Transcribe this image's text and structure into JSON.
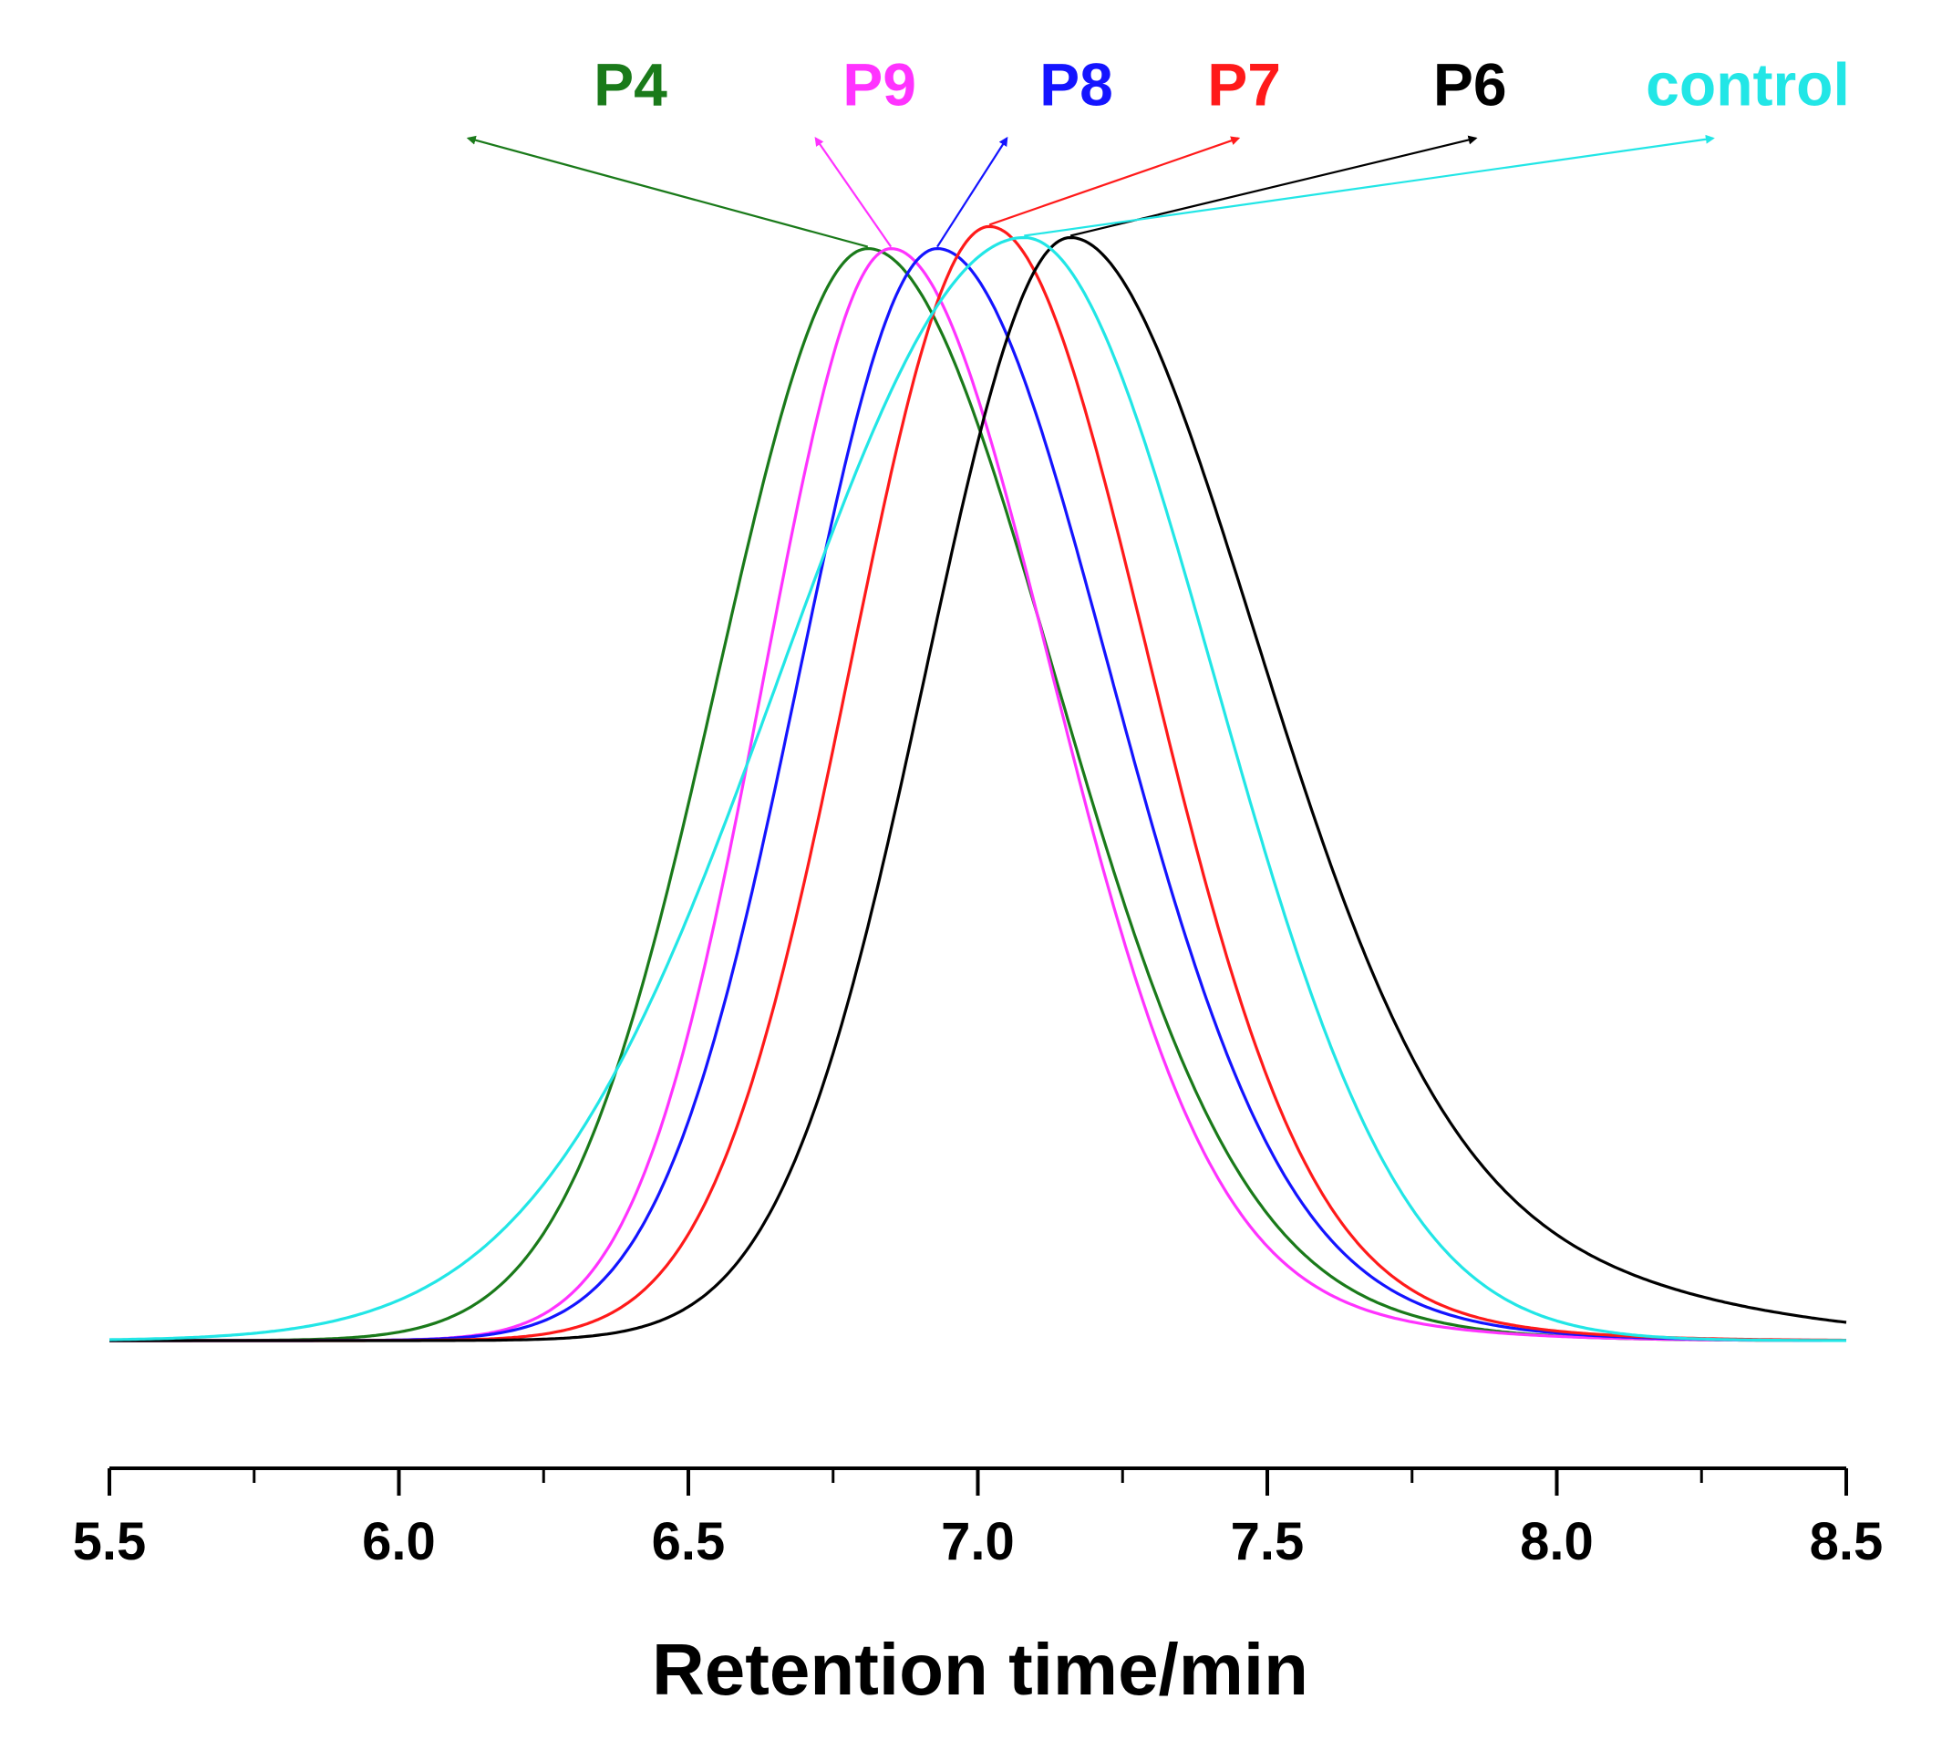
{
  "chart_data": {
    "type": "line",
    "xlabel": "Retention time/min",
    "ylabel": "",
    "xlim": [
      5.5,
      8.5
    ],
    "ylim": [
      0,
      1.05
    ],
    "x_ticks": [
      "5.5",
      "6.0",
      "6.5",
      "7.0",
      "7.5",
      "8.0",
      "8.5"
    ],
    "x_tick_values": [
      5.5,
      6.0,
      6.5,
      7.0,
      7.5,
      8.0,
      8.5
    ],
    "y_axis_visible": false,
    "grid": false,
    "legend": "labels above peaks with arrows",
    "series": [
      {
        "name": "P4",
        "color": "#1a7a1a",
        "peak_x": 6.81,
        "peak_y": 0.99,
        "sigma_left": 0.26,
        "sigma_right": 0.31,
        "tail_height": 0.06,
        "tail_width": 0.45,
        "label_x": 6.4,
        "label_y": 1.12,
        "arrow_x": 6.12,
        "arrow_y": 1.09
      },
      {
        "name": "P9",
        "color": "#ff33ff",
        "peak_x": 6.85,
        "peak_y": 0.99,
        "sigma_left": 0.22,
        "sigma_right": 0.27,
        "tail_height": 0.05,
        "tail_width": 0.45,
        "label_x": 6.83,
        "label_y": 1.12,
        "arrow_x": 6.72,
        "arrow_y": 1.09
      },
      {
        "name": "P8",
        "color": "#1414ff",
        "peak_x": 6.93,
        "peak_y": 0.99,
        "sigma_left": 0.24,
        "sigma_right": 0.29,
        "tail_height": 0.05,
        "tail_width": 0.45,
        "label_x": 7.17,
        "label_y": 1.12,
        "arrow_x": 7.05,
        "arrow_y": 1.09
      },
      {
        "name": "P7",
        "color": "#ff1a1a",
        "peak_x": 7.02,
        "peak_y": 1.01,
        "sigma_left": 0.24,
        "sigma_right": 0.27,
        "tail_height": 0.04,
        "tail_width": 0.45,
        "label_x": 7.46,
        "label_y": 1.12,
        "arrow_x": 7.45,
        "arrow_y": 1.09
      },
      {
        "name": "P6",
        "color": "#000000",
        "peak_x": 7.16,
        "peak_y": 1.0,
        "sigma_left": 0.25,
        "sigma_right": 0.31,
        "tail_height": 0.1,
        "tail_width": 0.6,
        "label_x": 7.85,
        "label_y": 1.12,
        "arrow_x": 7.86,
        "arrow_y": 1.09
      },
      {
        "name": "control",
        "color": "#22e6e6",
        "peak_x": 7.08,
        "peak_y": 1.0,
        "sigma_left": 0.42,
        "sigma_right": 0.32,
        "tail_height": 0.03,
        "tail_width": 0.35,
        "label_x": 8.33,
        "label_y": 1.12,
        "arrow_x": 8.27,
        "arrow_y": 1.09
      }
    ]
  }
}
